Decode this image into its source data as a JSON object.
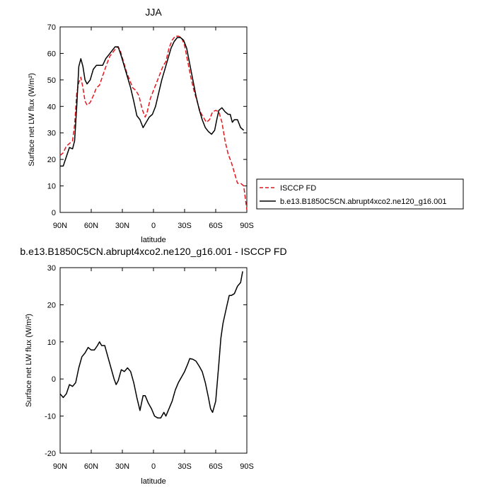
{
  "chart_data": [
    {
      "type": "line",
      "title": "JJA",
      "xlabel": "latitude",
      "ylabel": "Surface net LW flux (W/m²)",
      "xlim": [
        90,
        -90
      ],
      "ylim": [
        0,
        70
      ],
      "x_ticks": [
        90,
        60,
        30,
        0,
        -30,
        -60,
        -90
      ],
      "x_tick_labels": [
        "90N",
        "60N",
        "30N",
        "0",
        "30S",
        "60S",
        "90S"
      ],
      "y_ticks": [
        0,
        10,
        20,
        30,
        40,
        50,
        60,
        70
      ],
      "y_tick_labels": [
        "0",
        "10",
        "20",
        "30",
        "40",
        "50",
        "60",
        "70"
      ],
      "legend": {
        "placement": "right",
        "entries": [
          "ISCCP FD",
          "b.e13.B1850C5CN.abrupt4xco2.ne120_g16.001"
        ]
      },
      "series": [
        {
          "name": "ISCCP FD",
          "color": "#e8141b",
          "dash": "dashed",
          "points": [
            [
              90,
              21.5
            ],
            [
              87,
              22.5
            ],
            [
              84,
              25
            ],
            [
              81,
              26
            ],
            [
              78,
              27
            ],
            [
              76,
              33
            ],
            [
              74,
              45
            ],
            [
              72,
              49
            ],
            [
              70,
              51
            ],
            [
              68,
              47
            ],
            [
              66,
              42
            ],
            [
              64,
              40.5
            ],
            [
              61,
              41.5
            ],
            [
              58,
              44
            ],
            [
              55,
              47
            ],
            [
              52,
              48
            ],
            [
              49,
              51.5
            ],
            [
              45,
              56
            ],
            [
              42,
              59
            ],
            [
              39,
              60.5
            ],
            [
              36,
              62
            ],
            [
              34,
              62.5
            ],
            [
              32,
              61
            ],
            [
              29,
              57
            ],
            [
              26,
              53
            ],
            [
              23,
              50
            ],
            [
              20,
              47
            ],
            [
              17,
              46
            ],
            [
              14,
              44
            ],
            [
              11,
              39
            ],
            [
              8,
              36
            ],
            [
              6,
              38
            ],
            [
              3,
              43
            ],
            [
              0,
              46
            ],
            [
              -3,
              49
            ],
            [
              -6,
              52
            ],
            [
              -9,
              55
            ],
            [
              -12,
              57
            ],
            [
              -15,
              62
            ],
            [
              -18,
              65
            ],
            [
              -21,
              66.5
            ],
            [
              -24,
              66.5
            ],
            [
              -27,
              66
            ],
            [
              -30,
              63
            ],
            [
              -33,
              57
            ],
            [
              -36,
              51
            ],
            [
              -39,
              46
            ],
            [
              -42,
              42
            ],
            [
              -45,
              38
            ],
            [
              -48,
              36
            ],
            [
              -51,
              34
            ],
            [
              -54,
              35
            ],
            [
              -57,
              38
            ],
            [
              -60,
              38.5
            ],
            [
              -63,
              38
            ],
            [
              -66,
              34
            ],
            [
              -69,
              27
            ],
            [
              -72,
              22
            ],
            [
              -75,
              19
            ],
            [
              -78,
              15
            ],
            [
              -81,
              11
            ],
            [
              -84,
              11
            ],
            [
              -87,
              10
            ],
            [
              -90,
              1
            ]
          ]
        },
        {
          "name": "b.e13.B1850C5CN.abrupt4xco2.ne120_g16.001",
          "color": "#000000",
          "dash": "solid",
          "points": [
            [
              90,
              17.5
            ],
            [
              87,
              17.5
            ],
            [
              84,
              21
            ],
            [
              81,
              24.5
            ],
            [
              78,
              24
            ],
            [
              76,
              27
            ],
            [
              74,
              40
            ],
            [
              72,
              55
            ],
            [
              70,
              58
            ],
            [
              68,
              55
            ],
            [
              66,
              50
            ],
            [
              64,
              48.5
            ],
            [
              61,
              50
            ],
            [
              58,
              54
            ],
            [
              55,
              55.5
            ],
            [
              52,
              55.5
            ],
            [
              49,
              55.5
            ],
            [
              46,
              58
            ],
            [
              43,
              59.5
            ],
            [
              40,
              61
            ],
            [
              37,
              62.5
            ],
            [
              34,
              62.5
            ],
            [
              31,
              59
            ],
            [
              28,
              55
            ],
            [
              25,
              51
            ],
            [
              22,
              47
            ],
            [
              19,
              42
            ],
            [
              16,
              36.5
            ],
            [
              13,
              35
            ],
            [
              10,
              32
            ],
            [
              7,
              34
            ],
            [
              4,
              36
            ],
            [
              1,
              37
            ],
            [
              -2,
              40
            ],
            [
              -5,
              45
            ],
            [
              -8,
              50
            ],
            [
              -11,
              54
            ],
            [
              -14,
              58
            ],
            [
              -17,
              62
            ],
            [
              -20,
              64.5
            ],
            [
              -23,
              66
            ],
            [
              -26,
              66
            ],
            [
              -29,
              65
            ],
            [
              -32,
              62
            ],
            [
              -35,
              56
            ],
            [
              -38,
              50
            ],
            [
              -41,
              44
            ],
            [
              -44,
              39
            ],
            [
              -47,
              35
            ],
            [
              -50,
              32
            ],
            [
              -53,
              30.5
            ],
            [
              -56,
              29.5
            ],
            [
              -59,
              31
            ],
            [
              -61,
              35
            ],
            [
              -63,
              38.5
            ],
            [
              -66,
              39.5
            ],
            [
              -69,
              38
            ],
            [
              -72,
              37
            ],
            [
              -74,
              37
            ],
            [
              -76,
              34
            ],
            [
              -78,
              35
            ],
            [
              -81,
              35
            ],
            [
              -84,
              32
            ],
            [
              -87,
              31
            ]
          ]
        }
      ]
    },
    {
      "type": "line",
      "title": "b.e13.B1850C5CN.abrupt4xco2.ne120_g16.001 - ISCCP FD",
      "xlabel": "latitude",
      "ylabel": "Surface net LW flux (W/m²)",
      "xlim": [
        90,
        -90
      ],
      "ylim": [
        -20,
        30
      ],
      "x_ticks": [
        90,
        60,
        30,
        0,
        -30,
        -60,
        -90
      ],
      "x_tick_labels": [
        "90N",
        "60N",
        "30N",
        "0",
        "30S",
        "60S",
        "90S"
      ],
      "y_ticks": [
        -20,
        -10,
        0,
        10,
        20,
        30
      ],
      "y_tick_labels": [
        "-20",
        "-10",
        "0",
        "10",
        "20",
        "30"
      ],
      "series": [
        {
          "name": "difference",
          "color": "#000000",
          "dash": "solid",
          "points": [
            [
              90,
              -4
            ],
            [
              87,
              -5
            ],
            [
              84,
              -4
            ],
            [
              81,
              -1.5
            ],
            [
              78,
              -2
            ],
            [
              75,
              -1
            ],
            [
              72,
              3
            ],
            [
              69,
              6
            ],
            [
              66,
              7
            ],
            [
              63,
              8.5
            ],
            [
              60,
              7.8
            ],
            [
              57,
              7.8
            ],
            [
              54,
              9
            ],
            [
              52,
              10
            ],
            [
              50,
              9
            ],
            [
              47,
              9
            ],
            [
              44,
              6
            ],
            [
              41,
              3
            ],
            [
              38,
              0
            ],
            [
              36,
              -1.5
            ],
            [
              34,
              -0.5
            ],
            [
              31,
              2.5
            ],
            [
              28,
              2
            ],
            [
              25,
              3
            ],
            [
              22,
              2
            ],
            [
              19,
              -1
            ],
            [
              16,
              -5
            ],
            [
              13,
              -8.5
            ],
            [
              10,
              -4.5
            ],
            [
              8,
              -4.5
            ],
            [
              5,
              -6.5
            ],
            [
              2,
              -8
            ],
            [
              -1,
              -10
            ],
            [
              -4,
              -10.5
            ],
            [
              -7,
              -10.5
            ],
            [
              -10,
              -9
            ],
            [
              -12,
              -10
            ],
            [
              -15,
              -8
            ],
            [
              -18,
              -6
            ],
            [
              -21,
              -3
            ],
            [
              -24,
              -1
            ],
            [
              -27,
              0.5
            ],
            [
              -30,
              2
            ],
            [
              -33,
              4
            ],
            [
              -35,
              5.5
            ],
            [
              -38,
              5.3
            ],
            [
              -41,
              4.8
            ],
            [
              -44,
              3.5
            ],
            [
              -47,
              2
            ],
            [
              -50,
              -1
            ],
            [
              -53,
              -5
            ],
            [
              -55,
              -8
            ],
            [
              -57,
              -9
            ],
            [
              -60,
              -6
            ],
            [
              -63,
              4
            ],
            [
              -65,
              11
            ],
            [
              -67,
              15
            ],
            [
              -69,
              17.5
            ],
            [
              -71,
              20
            ],
            [
              -73,
              22.5
            ],
            [
              -75,
              22.5
            ],
            [
              -78,
              23
            ],
            [
              -81,
              25
            ],
            [
              -84,
              26
            ],
            [
              -86,
              29
            ]
          ]
        }
      ]
    }
  ]
}
